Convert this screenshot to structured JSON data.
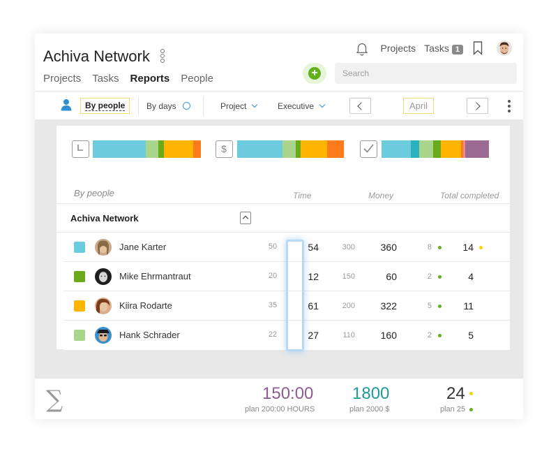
{
  "header": {
    "title": "Achiva Network",
    "tabs": [
      {
        "label": "Projects"
      },
      {
        "label": "Tasks"
      },
      {
        "label": "Reports"
      },
      {
        "label": "People"
      }
    ],
    "links": {
      "projects": "Projects",
      "tasks": "Tasks",
      "tasks_badge": "1"
    },
    "search_placeholder": "Search"
  },
  "toolbar": {
    "by_people": "By people",
    "by_days": "By days",
    "project": "Project",
    "executive": "Executive",
    "month": "April"
  },
  "summary_bars": {
    "time": [
      {
        "color": "#6ccbdc",
        "value": 50
      },
      {
        "color": "#a8d58b",
        "value": 12
      },
      {
        "color": "#6aaa1a",
        "value": 5
      },
      {
        "color": "#ffb400",
        "value": 28
      },
      {
        "color": "#ff7a1a",
        "value": 7
      }
    ],
    "money": [
      {
        "color": "#6ccbdc",
        "value": 48
      },
      {
        "color": "#a8d58b",
        "value": 14
      },
      {
        "color": "#6aaa1a",
        "value": 5
      },
      {
        "color": "#ffb400",
        "value": 28
      },
      {
        "color": "#ff7a1a",
        "value": 18
      }
    ],
    "completed": [
      {
        "color": "#6ccbdc",
        "value": 25
      },
      {
        "color": "#2bb1bf",
        "value": 7
      },
      {
        "color": "#a8d58b",
        "value": 12
      },
      {
        "color": "#6aaa1a",
        "value": 7
      },
      {
        "color": "#ffb400",
        "value": 17
      },
      {
        "color": "#ff7a1a",
        "value": 2
      },
      {
        "color": "#f28a8a",
        "value": 2
      },
      {
        "color": "#9b6b93",
        "value": 20
      }
    ]
  },
  "table": {
    "heading": "By people",
    "col_time": "Time",
    "col_money": "Money",
    "col_completed": "Total completed",
    "group": "Achiva Network",
    "rows": [
      {
        "name": "Jane Karter",
        "color": "#6ccbdc",
        "plan_time": "50",
        "time": "54",
        "plan_money": "300",
        "money": "360",
        "plan_done": "8",
        "done": "14",
        "flag": "#f5d400"
      },
      {
        "name": "Mike Ehrmantraut",
        "color": "#6aaa1a",
        "plan_time": "20",
        "time": "12",
        "plan_money": "150",
        "money": "60",
        "plan_done": "2",
        "done": "4",
        "flag": ""
      },
      {
        "name": "Kiira Rodarte",
        "color": "#ffb400",
        "plan_time": "35",
        "time": "61",
        "plan_money": "200",
        "money": "322",
        "plan_done": "5",
        "done": "11",
        "flag": ""
      },
      {
        "name": "Hank Schrader",
        "color": "#a8d58b",
        "plan_time": "22",
        "time": "27",
        "plan_money": "110",
        "money": "160",
        "plan_done": "2",
        "done": "5",
        "flag": ""
      }
    ]
  },
  "totals": {
    "time": "150:00",
    "time_plan": "plan 200:00 HOURS",
    "money": "1800",
    "money_plan": "plan 2000 $",
    "done": "24",
    "done_plan": "plan 25"
  }
}
